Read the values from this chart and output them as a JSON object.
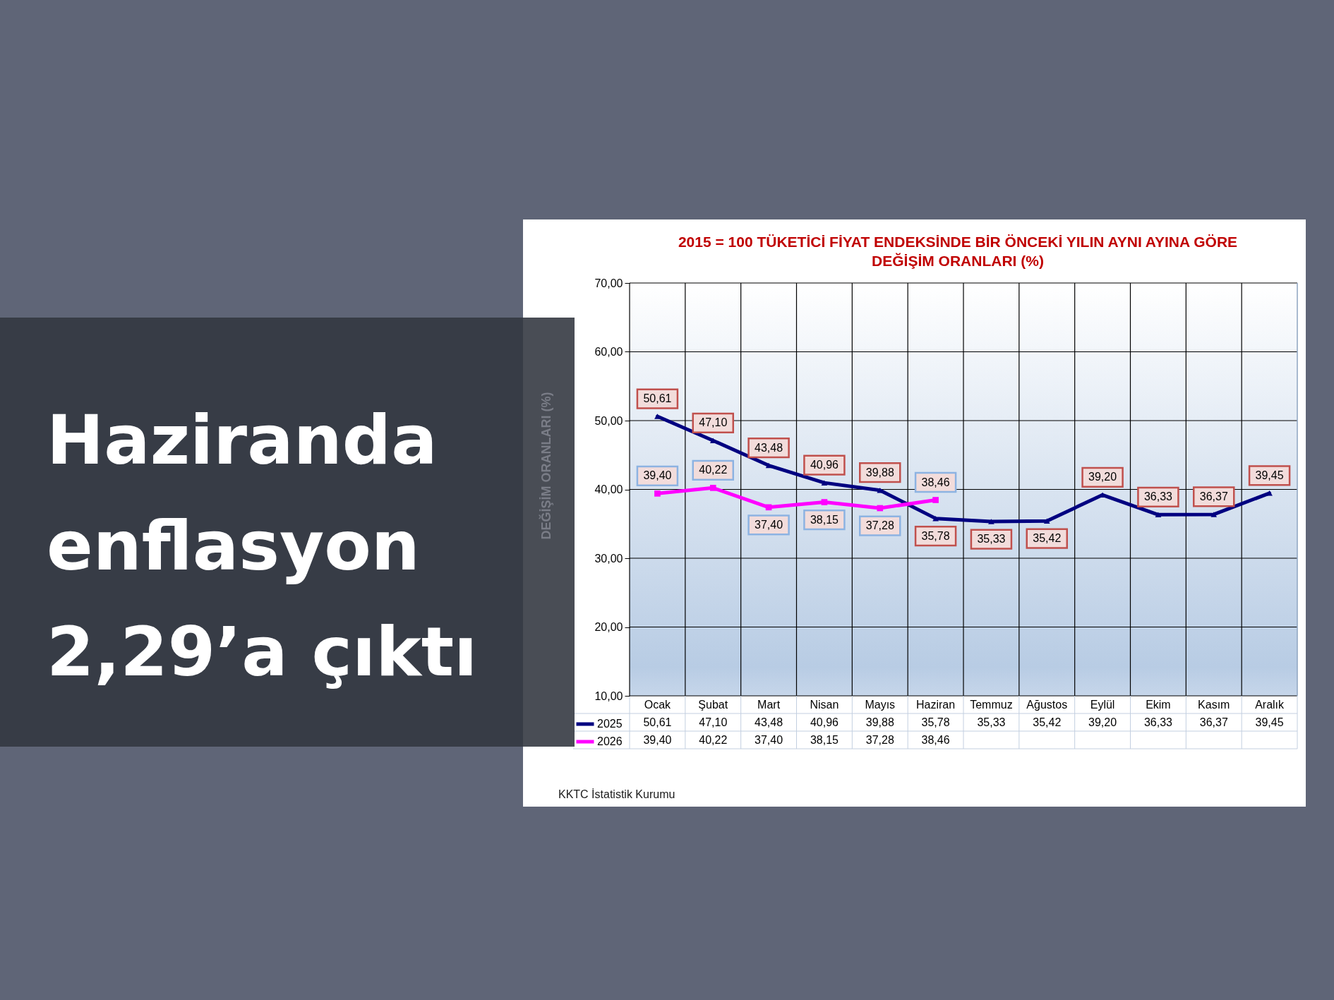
{
  "chart_data": {
    "type": "line",
    "title": "2015 = 100 TÜKETİCİ FİYAT ENDEKSİNDE BİR ÖNCEKİ YILIN AYNI AYINA GÖRE DEĞİŞİM ORANLARI (%)",
    "ylabel": "DEĞİŞİM ORANLARI (%)",
    "categories": [
      "Ocak",
      "Şubat",
      "Mart",
      "Nisan",
      "Mayıs",
      "Haziran",
      "Temmuz",
      "Ağustos",
      "Eylül",
      "Ekim",
      "Kasım",
      "Aralık"
    ],
    "series": [
      {
        "name": "2025",
        "color": "#000080",
        "marker": "triangle",
        "values": [
          50.61,
          47.1,
          43.48,
          40.96,
          39.88,
          35.78,
          35.33,
          35.42,
          39.2,
          36.33,
          36.37,
          39.45
        ],
        "value_labels": [
          "50,61",
          "47,10",
          "43,48",
          "40,96",
          "39,88",
          "35,78",
          "35,33",
          "35,42",
          "39,20",
          "36,33",
          "36,37",
          "39,45"
        ]
      },
      {
        "name": "2026",
        "color": "#ff00ff",
        "marker": "square",
        "values": [
          39.4,
          40.22,
          37.4,
          38.15,
          37.28,
          38.46,
          null,
          null,
          null,
          null,
          null,
          null
        ],
        "value_labels": [
          "39,40",
          "40,22",
          "37,40",
          "38,15",
          "37,28",
          "38,46",
          null,
          null,
          null,
          null,
          null,
          null
        ]
      }
    ],
    "ylim": [
      10,
      70
    ],
    "yticks": [
      {
        "value": 10,
        "label": "10,00"
      },
      {
        "value": 20,
        "label": "20,00"
      },
      {
        "value": 30,
        "label": "30,00"
      },
      {
        "value": 40,
        "label": "40,00"
      },
      {
        "value": 50,
        "label": "50,00"
      },
      {
        "value": 60,
        "label": "60,00"
      },
      {
        "value": 70,
        "label": "70,00"
      }
    ],
    "grid": true,
    "legend": "bottom",
    "line_style": "solid",
    "annotations": [
      "Haziranda enflasyon 2,29’a çıktı",
      "KKTC İstatistik Kurumu"
    ]
  }
}
